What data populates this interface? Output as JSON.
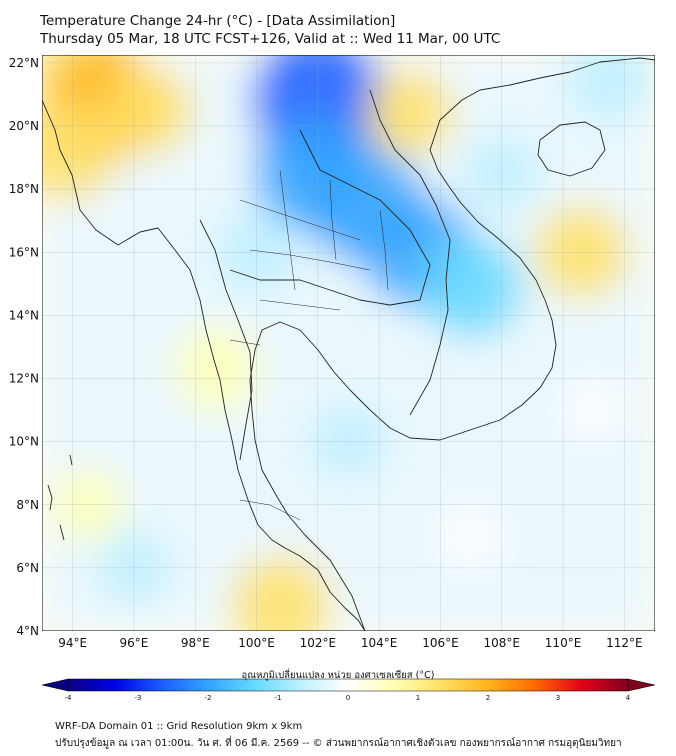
{
  "header": {
    "title_line1": "Temperature Change 24-hr (°C) - [Data Assimilation]",
    "title_line2": "Thursday 05 Mar, 18 UTC FCST+126, Valid at :: Wed 11 Mar, 00 UTC"
  },
  "map": {
    "lon_range": [
      93,
      113
    ],
    "lat_range": [
      4,
      22.25
    ],
    "lon_ticks": [
      94,
      96,
      98,
      100,
      102,
      104,
      106,
      108,
      110,
      112
    ],
    "lon_tick_labels": [
      "94°E",
      "96°E",
      "98°E",
      "100°E",
      "102°E",
      "104°E",
      "106°E",
      "108°E",
      "110°E",
      "112°E"
    ],
    "lat_ticks": [
      4,
      6,
      8,
      10,
      12,
      14,
      16,
      18,
      20,
      22
    ],
    "lat_tick_labels": [
      "4°N",
      "6°N",
      "8°N",
      "10°N",
      "12°N",
      "14°N",
      "16°N",
      "18°N",
      "20°N",
      "22°N"
    ],
    "gridlines": true,
    "field_anomalies": [
      {
        "lon": 94.5,
        "lat": 21.5,
        "value": 1.6
      },
      {
        "lon": 95.0,
        "lat": 20.6,
        "value": 1.9
      },
      {
        "lon": 93.8,
        "lat": 19.2,
        "value": 1.4
      },
      {
        "lon": 96.5,
        "lat": 20.5,
        "value": 1.0
      },
      {
        "lon": 102.0,
        "lat": 20.8,
        "value": -2.4
      },
      {
        "lon": 101.8,
        "lat": 18.5,
        "value": -1.9
      },
      {
        "lon": 103.5,
        "lat": 17.5,
        "value": -2.0
      },
      {
        "lon": 105.3,
        "lat": 16.0,
        "value": -1.8
      },
      {
        "lon": 107.0,
        "lat": 14.9,
        "value": -1.5
      },
      {
        "lon": 105.0,
        "lat": 20.4,
        "value": 1.0
      },
      {
        "lon": 110.6,
        "lat": 16.0,
        "value": 1.2
      },
      {
        "lon": 98.7,
        "lat": 12.3,
        "value": 0.9
      },
      {
        "lon": 100.8,
        "lat": 4.8,
        "value": 1.4
      },
      {
        "lon": 96.0,
        "lat": 6.0,
        "value": -0.6
      },
      {
        "lon": 94.5,
        "lat": 8.0,
        "value": 0.5
      },
      {
        "lon": 100.0,
        "lat": 16.0,
        "value": -0.9
      },
      {
        "lon": 108.0,
        "lat": 18.5,
        "value": -0.7
      },
      {
        "lon": 111.5,
        "lat": 21.5,
        "value": -1.0
      },
      {
        "lon": 103.0,
        "lat": 10.0,
        "value": -0.7
      },
      {
        "lon": 107.0,
        "lat": 7.0,
        "value": 0.3
      },
      {
        "lon": 111.0,
        "lat": 11.0,
        "value": 0.2
      }
    ]
  },
  "colorbar": {
    "label": "อุณหภูมิเปลี่ยนแปลง หน่วย องศาเซลเซียส (°C)",
    "min": -4,
    "max": 4,
    "ticks": [
      -4,
      -3,
      -2,
      -1,
      0,
      1,
      2,
      3,
      4
    ],
    "tick_labels": [
      "-4",
      "-3",
      "-2",
      "-1",
      "0",
      "1",
      "2",
      "3",
      "4"
    ],
    "colors": [
      "#0b0080",
      "#0000e6",
      "#1a5cff",
      "#33a3ff",
      "#66d9ff",
      "#bff0ff",
      "#ffffff",
      "#ffffb3",
      "#ffe066",
      "#ffb41a",
      "#ff6a00",
      "#e6001a",
      "#800020"
    ]
  },
  "footer": {
    "line1": "WRF-DA Domain 01 :: Grid Resolution 9km x 9km",
    "line2": "ปรับปรุงข้อมูล ณ เวลา 01:00น. วัน ศ. ที่ 06 มี.ค. 2569 -- © ส่วนพยากรณ์อากาศเชิงตัวเลข กองพยากรณ์อากาศ กรมอุตุนิยมวิทยา"
  }
}
